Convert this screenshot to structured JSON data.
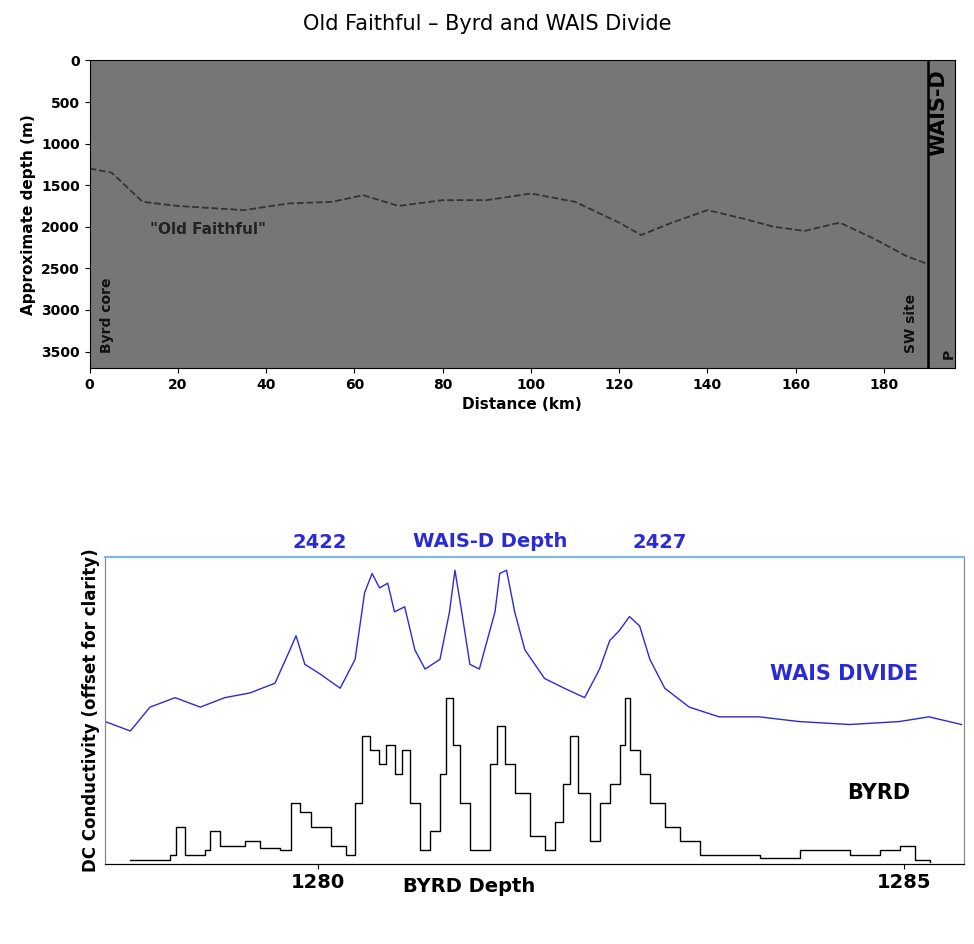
{
  "title": "Old Faithful – Byrd and WAIS Divide",
  "chart_data": [
    {
      "type": "line",
      "xlabel": "Distance (km)",
      "ylabel": "Approximate depth (m)",
      "xlim": [
        0,
        196
      ],
      "ylim": [
        3700,
        0
      ],
      "xticks": [
        0,
        20,
        40,
        60,
        80,
        100,
        120,
        140,
        160,
        180
      ],
      "yticks": [
        0,
        500,
        1000,
        1500,
        2000,
        2500,
        3000,
        3500
      ],
      "series": [
        {
          "name": "\"Old Faithful\"",
          "color": "#333333",
          "line_style": "dashed",
          "x": [
            0,
            5,
            12,
            20,
            35,
            45,
            55,
            62,
            70,
            80,
            90,
            100,
            110,
            120,
            125,
            132,
            140,
            148,
            155,
            162,
            170,
            178,
            185,
            190
          ],
          "values": [
            1300,
            1350,
            1700,
            1750,
            1800,
            1720,
            1700,
            1620,
            1750,
            1680,
            1680,
            1600,
            1700,
            1950,
            2100,
            1950,
            1800,
            1900,
            2000,
            2050,
            1950,
            2150,
            2350,
            2450
          ]
        }
      ],
      "vlines": [
        {
          "x": 190,
          "label": "WAIS-D",
          "color": "#000000"
        }
      ],
      "annotations": [
        "Byrd core",
        "SW site",
        "P"
      ]
    },
    {
      "type": "line",
      "ylabel": "DC Conductivity (offset for clarity)",
      "xlabel": "BYRD Depth",
      "x2label": "WAIS-D Depth",
      "xlim": [
        1278.19,
        1285.51
      ],
      "xticks": [
        1280,
        1285
      ],
      "x2lim": [
        2418.84,
        2431.49
      ],
      "x2ticks": [
        2422,
        2427
      ],
      "ylim": [
        0,
        10.4
      ],
      "tick_labels": "x",
      "series": [
        {
          "name": "WAIS DIVIDE",
          "color": "#2b2bd6",
          "axis": "x2",
          "line_style": "solid",
          "x": [
            2418.84,
            2419.21,
            2419.5,
            2419.87,
            2420.24,
            2420.6,
            2420.97,
            2421.34,
            2421.56,
            2421.65,
            2421.78,
            2422.0,
            2422.3,
            2422.52,
            2422.66,
            2422.77,
            2422.88,
            2423.0,
            2423.1,
            2423.25,
            2423.4,
            2423.55,
            2423.77,
            2423.91,
            2423.99,
            2424.09,
            2424.21,
            2424.35,
            2424.58,
            2424.65,
            2424.75,
            2424.87,
            2425.02,
            2425.31,
            2425.6,
            2425.9,
            2426.12,
            2426.27,
            2426.41,
            2426.56,
            2426.71,
            2426.86,
            2427.08,
            2427.44,
            2427.88,
            2428.47,
            2429.06,
            2429.8,
            2430.53,
            2430.97,
            2431.45
          ],
          "values": [
            4.82,
            4.5,
            5.31,
            5.63,
            5.31,
            5.63,
            5.79,
            6.12,
            7.25,
            7.73,
            6.76,
            6.44,
            5.95,
            6.93,
            9.19,
            9.84,
            9.35,
            9.51,
            8.54,
            8.71,
            7.25,
            6.6,
            6.93,
            8.54,
            9.95,
            8.54,
            6.76,
            6.6,
            8.54,
            9.84,
            9.95,
            8.54,
            7.25,
            6.28,
            5.95,
            5.63,
            6.6,
            7.57,
            7.9,
            8.38,
            8.06,
            6.93,
            5.95,
            5.31,
            4.98,
            4.98,
            4.82,
            4.72,
            4.82,
            4.98,
            4.72
          ]
        },
        {
          "name": "BYRD",
          "color": "#000000",
          "line_style": "steps",
          "x": [
            1278.4,
            1278.74,
            1278.79,
            1278.87,
            1279.04,
            1279.08,
            1279.17,
            1279.38,
            1279.51,
            1279.68,
            1279.77,
            1279.85,
            1279.94,
            1280.11,
            1280.24,
            1280.32,
            1280.38,
            1280.45,
            1280.52,
            1280.58,
            1280.66,
            1280.72,
            1280.79,
            1280.87,
            1280.96,
            1281.04,
            1281.09,
            1281.15,
            1281.21,
            1281.3,
            1281.38,
            1281.47,
            1281.53,
            1281.6,
            1281.68,
            1281.81,
            1281.94,
            1282.02,
            1282.09,
            1282.15,
            1282.22,
            1282.32,
            1282.41,
            1282.49,
            1282.58,
            1282.62,
            1282.66,
            1282.75,
            1282.83,
            1282.96,
            1283.09,
            1283.26,
            1283.77,
            1284.11,
            1284.54,
            1284.79,
            1284.96,
            1285.09,
            1285.22
          ],
          "values": [
            0.13,
            0.29,
            1.26,
            0.29,
            0.45,
            1.1,
            0.61,
            0.78,
            0.52,
            0.45,
            2.07,
            1.75,
            1.26,
            0.61,
            0.29,
            2.07,
            4.34,
            3.85,
            3.37,
            4.01,
            3.04,
            3.85,
            2.07,
            0.45,
            1.1,
            3.04,
            5.63,
            4.01,
            2.07,
            0.45,
            0.45,
            3.37,
            4.66,
            3.37,
            2.39,
            0.94,
            0.45,
            1.42,
            2.72,
            4.34,
            2.39,
            0.78,
            2.07,
            2.72,
            4.01,
            5.63,
            3.85,
            3.04,
            2.07,
            1.26,
            0.78,
            0.29,
            0.19,
            0.45,
            0.29,
            0.45,
            0.61,
            0.13,
            0.06
          ]
        }
      ]
    }
  ]
}
